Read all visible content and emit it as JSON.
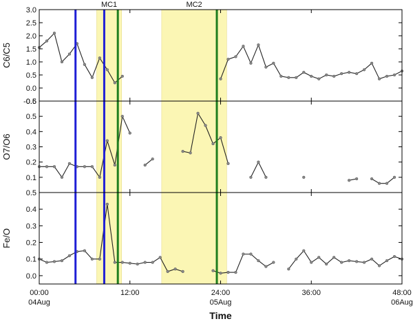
{
  "chart_data": {
    "type": "line",
    "x_unit": "hours from 00:00 04Aug",
    "xlim": [
      0,
      48
    ],
    "xticks": [
      {
        "x": 0,
        "label": "00:00",
        "sublabel": "04Aug"
      },
      {
        "x": 12,
        "label": "12:00",
        "sublabel": ""
      },
      {
        "x": 24,
        "label": "24:00",
        "sublabel": "05Aug"
      },
      {
        "x": 36,
        "label": "36:00",
        "sublabel": ""
      },
      {
        "x": 48,
        "label": "48:00",
        "sublabel": "06Aug"
      }
    ],
    "xlabel": "Time",
    "shaded_intervals": [
      {
        "label": "MC1",
        "start": 7.6,
        "end": 10.9
      },
      {
        "label": "MC2",
        "start": 16.2,
        "end": 24.8
      }
    ],
    "vertical_lines": [
      {
        "x": 4.8,
        "color": "#1f1fd6"
      },
      {
        "x": 8.6,
        "color": "#1f1fd6"
      },
      {
        "x": 10.4,
        "color": "#1e7d1e"
      },
      {
        "x": 23.5,
        "color": "#1e7d1e"
      }
    ],
    "panels": [
      {
        "ylabel": "C6/C5",
        "ylim": [
          -0.5,
          3.0
        ],
        "yticks": [
          -0.5,
          0.0,
          0.5,
          1.0,
          1.5,
          2.0,
          2.5,
          3.0
        ],
        "segments": [
          [
            [
              0,
              1.55
            ],
            [
              1,
              1.8
            ],
            [
              2,
              2.1
            ],
            [
              3,
              1.0
            ],
            [
              4,
              1.3
            ],
            [
              5,
              1.7
            ],
            [
              6,
              0.9
            ],
            [
              7,
              0.4
            ],
            [
              8,
              1.15
            ],
            [
              9,
              0.7
            ],
            [
              10,
              0.2
            ],
            [
              11,
              0.45
            ]
          ],
          [
            [
              24,
              0.35
            ],
            [
              25,
              1.1
            ],
            [
              26,
              1.2
            ],
            [
              27,
              1.6
            ],
            [
              28,
              0.95
            ],
            [
              29,
              1.65
            ],
            [
              30,
              0.8
            ],
            [
              31,
              0.95
            ],
            [
              32,
              0.45
            ],
            [
              33,
              0.4
            ],
            [
              34,
              0.4
            ],
            [
              35,
              0.6
            ],
            [
              36,
              0.45
            ],
            [
              37,
              0.35
            ],
            [
              38,
              0.5
            ],
            [
              39,
              0.45
            ],
            [
              40,
              0.55
            ],
            [
              41,
              0.6
            ],
            [
              42,
              0.55
            ],
            [
              43,
              0.7
            ],
            [
              44,
              0.95
            ],
            [
              45,
              0.35
            ],
            [
              46,
              0.45
            ],
            [
              47,
              0.5
            ],
            [
              48,
              0.65
            ]
          ]
        ]
      },
      {
        "ylabel": "O7/O6",
        "ylim": [
          0.0,
          0.6
        ],
        "yticks": [
          0.1,
          0.2,
          0.3,
          0.4,
          0.5,
          0.6
        ],
        "segments": [
          [
            [
              0,
              0.17
            ],
            [
              1,
              0.17
            ],
            [
              2,
              0.17
            ],
            [
              3,
              0.1
            ],
            [
              4,
              0.19
            ],
            [
              5,
              0.17
            ],
            [
              6,
              0.17
            ],
            [
              7,
              0.17
            ],
            [
              8,
              0.1
            ],
            [
              9,
              0.34
            ],
            [
              10,
              0.18
            ],
            [
              11,
              0.5
            ],
            [
              12,
              0.39
            ]
          ],
          [
            [
              14,
              0.18
            ],
            [
              15,
              0.22
            ]
          ],
          [
            [
              19,
              0.27
            ],
            [
              20,
              0.26
            ],
            [
              21,
              0.52
            ],
            [
              22,
              0.44
            ],
            [
              23,
              0.32
            ],
            [
              24,
              0.36
            ],
            [
              25,
              0.19
            ]
          ],
          [
            [
              28,
              0.1
            ],
            [
              29,
              0.2
            ],
            [
              30,
              0.1
            ]
          ],
          [
            [
              35,
              0.1
            ]
          ],
          [
            [
              41,
              0.08
            ],
            [
              42,
              0.09
            ]
          ],
          [
            [
              44,
              0.09
            ],
            [
              45,
              0.06
            ],
            [
              46,
              0.06
            ],
            [
              47,
              0.1
            ]
          ]
        ]
      },
      {
        "ylabel": "Fe/O",
        "ylim": [
          -0.05,
          0.5
        ],
        "yticks": [
          0.0,
          0.1,
          0.2,
          0.3,
          0.4,
          0.5
        ],
        "segments": [
          [
            [
              0,
              0.1
            ],
            [
              1,
              0.08
            ],
            [
              2,
              0.085
            ],
            [
              3,
              0.09
            ],
            [
              4,
              0.12
            ],
            [
              5,
              0.145
            ],
            [
              6,
              0.15
            ],
            [
              7,
              0.1
            ],
            [
              8,
              0.1
            ],
            [
              9,
              0.43
            ],
            [
              10,
              0.08
            ],
            [
              11,
              0.08
            ],
            [
              12,
              0.075
            ],
            [
              13,
              0.07
            ],
            [
              14,
              0.08
            ],
            [
              15,
              0.08
            ],
            [
              16,
              0.11
            ],
            [
              17,
              0.025
            ],
            [
              18,
              0.04
            ],
            [
              19,
              0.025
            ]
          ],
          [
            [
              23,
              0.03
            ],
            [
              24,
              0.015
            ],
            [
              25,
              0.02
            ],
            [
              26,
              0.02
            ],
            [
              27,
              0.13
            ],
            [
              28,
              0.13
            ],
            [
              29,
              0.09
            ],
            [
              30,
              0.055
            ],
            [
              31,
              0.08
            ]
          ],
          [
            [
              33,
              0.04
            ],
            [
              34,
              0.1
            ],
            [
              35,
              0.15
            ],
            [
              36,
              0.08
            ],
            [
              37,
              0.11
            ],
            [
              38,
              0.07
            ],
            [
              39,
              0.11
            ],
            [
              40,
              0.08
            ],
            [
              41,
              0.09
            ],
            [
              42,
              0.085
            ],
            [
              43,
              0.08
            ],
            [
              44,
              0.1
            ],
            [
              45,
              0.06
            ],
            [
              46,
              0.09
            ],
            [
              47,
              0.115
            ],
            [
              48,
              0.1
            ]
          ]
        ]
      }
    ]
  }
}
